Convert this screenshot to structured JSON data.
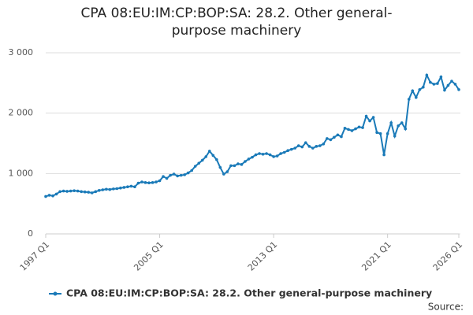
{
  "chart_data": {
    "type": "line",
    "title": "CPA 08:EU:IM:CP:BOP:SA: 28.2. Other general-purpose machinery",
    "source": "Source:",
    "categories": [
      "1997 Q1",
      null,
      null,
      null,
      null,
      null,
      null,
      null,
      null,
      null,
      null,
      null,
      null,
      null,
      null,
      null,
      null,
      null,
      null,
      null,
      null,
      null,
      null,
      null,
      null,
      null,
      null,
      null,
      null,
      null,
      null,
      null,
      "2005 Q1",
      null,
      null,
      null,
      null,
      null,
      null,
      null,
      null,
      null,
      null,
      null,
      null,
      null,
      null,
      null,
      null,
      null,
      null,
      null,
      null,
      null,
      null,
      null,
      null,
      null,
      null,
      null,
      null,
      null,
      null,
      null,
      "2013 Q1",
      null,
      null,
      null,
      null,
      null,
      null,
      null,
      null,
      null,
      null,
      null,
      null,
      null,
      null,
      null,
      null,
      null,
      null,
      null,
      null,
      null,
      null,
      null,
      null,
      null,
      null,
      null,
      null,
      null,
      null,
      null,
      "2021 Q1",
      null,
      null,
      null,
      null,
      null,
      null,
      null,
      null,
      null,
      null,
      null,
      null,
      null,
      null,
      null,
      null,
      null,
      null,
      null,
      "2026 Q1"
    ],
    "series": [
      {
        "name": "CPA 08:EU:IM:CP:BOP:SA: 28.2. Other general-purpose machinery",
        "color": "#1a7ab8",
        "values": [
          620,
          640,
          630,
          660,
          700,
          710,
          705,
          710,
          715,
          710,
          700,
          695,
          690,
          680,
          700,
          720,
          730,
          740,
          735,
          745,
          750,
          760,
          770,
          780,
          790,
          780,
          840,
          860,
          850,
          845,
          850,
          860,
          880,
          950,
          920,
          970,
          990,
          960,
          970,
          980,
          1010,
          1050,
          1120,
          1170,
          1220,
          1280,
          1370,
          1300,
          1230,
          1100,
          990,
          1030,
          1130,
          1130,
          1160,
          1150,
          1200,
          1240,
          1270,
          1310,
          1330,
          1320,
          1330,
          1310,
          1280,
          1290,
          1330,
          1350,
          1380,
          1400,
          1420,
          1460,
          1440,
          1510,
          1450,
          1420,
          1450,
          1460,
          1490,
          1580,
          1560,
          1600,
          1640,
          1610,
          1750,
          1730,
          1710,
          1740,
          1770,
          1760,
          1950,
          1870,
          1930,
          1680,
          1660,
          1310,
          1660,
          1840,
          1620,
          1790,
          1840,
          1740,
          2230,
          2370,
          2260,
          2390,
          2430,
          2630,
          2510,
          2480,
          2490,
          2600,
          2380,
          2460,
          2530,
          2480,
          2390
        ]
      }
    ],
    "ylim": [
      0,
      3000
    ],
    "yticks": [
      0,
      {
        "value": 1000,
        "label": "1 000"
      },
      {
        "value": 2000,
        "label": "2 000"
      },
      {
        "value": 3000,
        "label": "3 000"
      }
    ],
    "grid": true
  }
}
